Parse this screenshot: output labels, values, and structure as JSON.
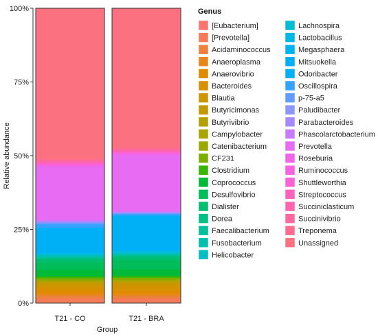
{
  "chart_data": {
    "type": "bar",
    "stacked": true,
    "xlabel": "Group",
    "ylabel": "Relative abundance",
    "ylim": [
      0,
      1
    ],
    "yticks": [
      0,
      0.25,
      0.5,
      0.75,
      1
    ],
    "ytick_labels": [
      "0%",
      "25%",
      "50%",
      "75%",
      "100%"
    ],
    "categories": [
      "T21 - CO",
      "T21 - BRA"
    ],
    "grid": false,
    "legend": {
      "title": "Genus",
      "placement": "right",
      "columns": 2
    },
    "series": [
      {
        "name": "[Eubacterium]",
        "color": "#F8766D",
        "values": [
          0.002,
          0.002
        ]
      },
      {
        "name": "[Prevotella]",
        "color": "#F37B59",
        "values": [
          0.012,
          0.012
        ]
      },
      {
        "name": "Acidaminococcus",
        "color": "#ED813E",
        "values": [
          0.008,
          0.008
        ]
      },
      {
        "name": "Anaeroplasma",
        "color": "#E7861B",
        "values": [
          0.007,
          0.007
        ]
      },
      {
        "name": "Anaerovibrio",
        "color": "#DF8B00",
        "values": [
          0.01,
          0.01
        ]
      },
      {
        "name": "Bacteroides",
        "color": "#D69100",
        "values": [
          0.01,
          0.012
        ]
      },
      {
        "name": "Blautia",
        "color": "#CD9600",
        "values": [
          0.008,
          0.008
        ]
      },
      {
        "name": "Butyricimonas",
        "color": "#C29A00",
        "values": [
          0.004,
          0.004
        ]
      },
      {
        "name": "Butyrivibrio",
        "color": "#B69F00",
        "values": [
          0.003,
          0.003
        ]
      },
      {
        "name": "Campylobacter",
        "color": "#A9A400",
        "values": [
          0.003,
          0.003
        ]
      },
      {
        "name": "Catenibacterium",
        "color": "#9AA800",
        "values": [
          0.003,
          0.003
        ]
      },
      {
        "name": "CF231",
        "color": "#7CAE00",
        "values": [
          0.005,
          0.005
        ]
      },
      {
        "name": "Clostridium",
        "color": "#39B600",
        "values": [
          0.005,
          0.005
        ]
      },
      {
        "name": "Coprococcus",
        "color": "#00BA38",
        "values": [
          0.02,
          0.02
        ]
      },
      {
        "name": "Desulfovibrio",
        "color": "#00BC59",
        "values": [
          0.022,
          0.028
        ]
      },
      {
        "name": "Dialister",
        "color": "#00BE70",
        "values": [
          0.01,
          0.01
        ]
      },
      {
        "name": "Dorea",
        "color": "#00C086",
        "values": [
          0.003,
          0.003
        ]
      },
      {
        "name": "Faecalibacterium",
        "color": "#00C09B",
        "values": [
          0.003,
          0.003
        ]
      },
      {
        "name": "Fusobacterium",
        "color": "#00BFAF",
        "values": [
          0.003,
          0.003
        ]
      },
      {
        "name": "Helicobacter",
        "color": "#00BEC2",
        "values": [
          0.003,
          0.003
        ]
      },
      {
        "name": "Lachnospira",
        "color": "#00BCD4",
        "values": [
          0.003,
          0.003
        ]
      },
      {
        "name": "Lactobacillus",
        "color": "#00B8E5",
        "values": [
          0.003,
          0.003
        ]
      },
      {
        "name": "Megasphaera",
        "color": "#00B4F0",
        "values": [
          0.003,
          0.003
        ]
      },
      {
        "name": "Mitsuokella",
        "color": "#00AEF8",
        "values": [
          0.003,
          0.003
        ]
      },
      {
        "name": "Odoribacter",
        "color": "#00B0F6",
        "values": [
          0.07,
          0.1
        ]
      },
      {
        "name": "Oscillospira",
        "color": "#35A2FF",
        "values": [
          0.01,
          0.005
        ]
      },
      {
        "name": "p-75-a5",
        "color": "#619CFF",
        "values": [
          0.003,
          0.002
        ]
      },
      {
        "name": "Paludibacter",
        "color": "#8D96FF",
        "values": [
          0.003,
          0.002
        ]
      },
      {
        "name": "Parabacteroides",
        "color": "#A58AFF",
        "values": [
          0.003,
          0.002
        ]
      },
      {
        "name": "Phascolarctobacterium",
        "color": "#C77CFF",
        "values": [
          0.003,
          0.002
        ]
      },
      {
        "name": "Prevotella",
        "color": "#E76BF3",
        "values": [
          0.16,
          0.17
        ]
      },
      {
        "name": "Roseburia",
        "color": "#F066EA",
        "values": [
          0.003,
          0.003
        ]
      },
      {
        "name": "Ruminococcus",
        "color": "#F863DF",
        "values": [
          0.003,
          0.003
        ]
      },
      {
        "name": "Shuttleworthia",
        "color": "#FC61D5",
        "values": [
          0.003,
          0.003
        ]
      },
      {
        "name": "Streptococcus",
        "color": "#FF62BC",
        "values": [
          0.003,
          0.003
        ]
      },
      {
        "name": "Succiniclasticum",
        "color": "#FF65AE",
        "values": [
          0.003,
          0.003
        ]
      },
      {
        "name": "Succinivibrio",
        "color": "#FF689F",
        "values": [
          0.004,
          0.004
        ]
      },
      {
        "name": "Treponema",
        "color": "#FF6C90",
        "values": [
          0.004,
          0.004
        ]
      },
      {
        "name": "Unassigned",
        "color": "#FC717F",
        "values": [
          0.45,
          0.42
        ]
      }
    ]
  }
}
